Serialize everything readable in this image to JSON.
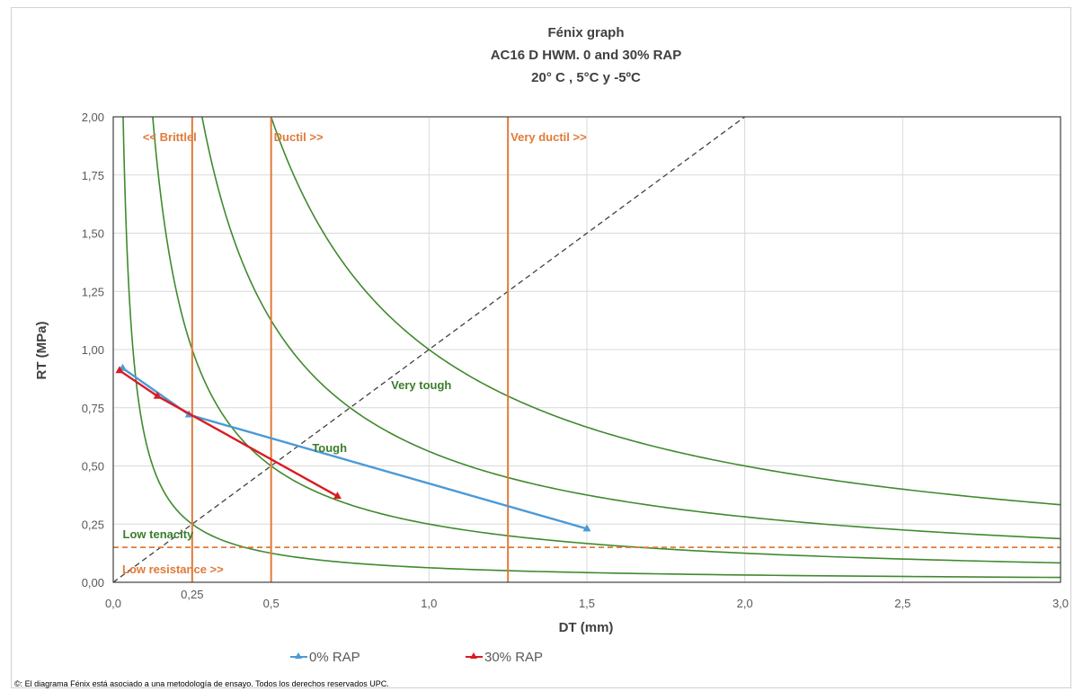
{
  "chart_data": {
    "type": "line",
    "title": [
      "Fénix graph",
      "AC16 D HWM. 0 and 30% RAP",
      "20° C ,  5°C y -5ºC"
    ],
    "xlabel": "DT (mm)",
    "ylabel": "RT (MPa)",
    "xlim": [
      0,
      3.0
    ],
    "ylim": [
      0,
      2.0
    ],
    "x_ticks": [
      "0,0",
      "0,25",
      "0,5",
      "1,0",
      "1,5",
      "2,0",
      "2,5",
      "3,0"
    ],
    "x_tick_values": [
      0,
      0.25,
      0.5,
      1.0,
      1.5,
      2.0,
      2.5,
      3.0
    ],
    "y_ticks": [
      "0,00",
      "0,25",
      "0,50",
      "0,75",
      "1,00",
      "1,25",
      "1,50",
      "1,75",
      "2,00"
    ],
    "y_tick_values": [
      0,
      0.25,
      0.5,
      0.75,
      1.0,
      1.25,
      1.5,
      1.75,
      2.0
    ],
    "grid": true,
    "legend_position": "bottom",
    "series": [
      {
        "name": "0% RAP",
        "color": "#4a9ad8",
        "marker": "triangle",
        "points": [
          [
            0.03,
            0.92
          ],
          [
            0.24,
            0.72
          ],
          [
            1.5,
            0.23
          ]
        ]
      },
      {
        "name": "30% RAP",
        "color": "#d91c22",
        "marker": "triangle",
        "points": [
          [
            0.02,
            0.91
          ],
          [
            0.14,
            0.8
          ],
          [
            0.71,
            0.37
          ]
        ]
      }
    ],
    "hyperbolas": {
      "color": "#3f8a2e",
      "constants": [
        0.0625,
        0.25,
        0.5625,
        1.0
      ]
    },
    "diagonal": {
      "from": [
        0,
        0
      ],
      "to": [
        2.0,
        2.0
      ],
      "color": "#404040"
    },
    "vertical_lines": {
      "color": "#e07b39",
      "x": [
        0.25,
        0.5,
        1.25
      ],
      "labels": [
        "<< Brittlel",
        "Ductil >>",
        "Very ductil >>"
      ]
    },
    "horizontal_line": {
      "y": 0.15,
      "color": "#e07b39",
      "label": "Low resistance >>"
    },
    "region_labels": [
      {
        "text": "Low tenacity",
        "x": 0.03,
        "y": 0.19
      },
      {
        "text": "Tough",
        "x": 0.63,
        "y": 0.56
      },
      {
        "text": "Very tough",
        "x": 0.88,
        "y": 0.83
      }
    ]
  },
  "footer": {
    "copyright": "©: El diagrama Fénix está asociado a una metodología de ensayo. Todos los derechos reservados UPC."
  }
}
